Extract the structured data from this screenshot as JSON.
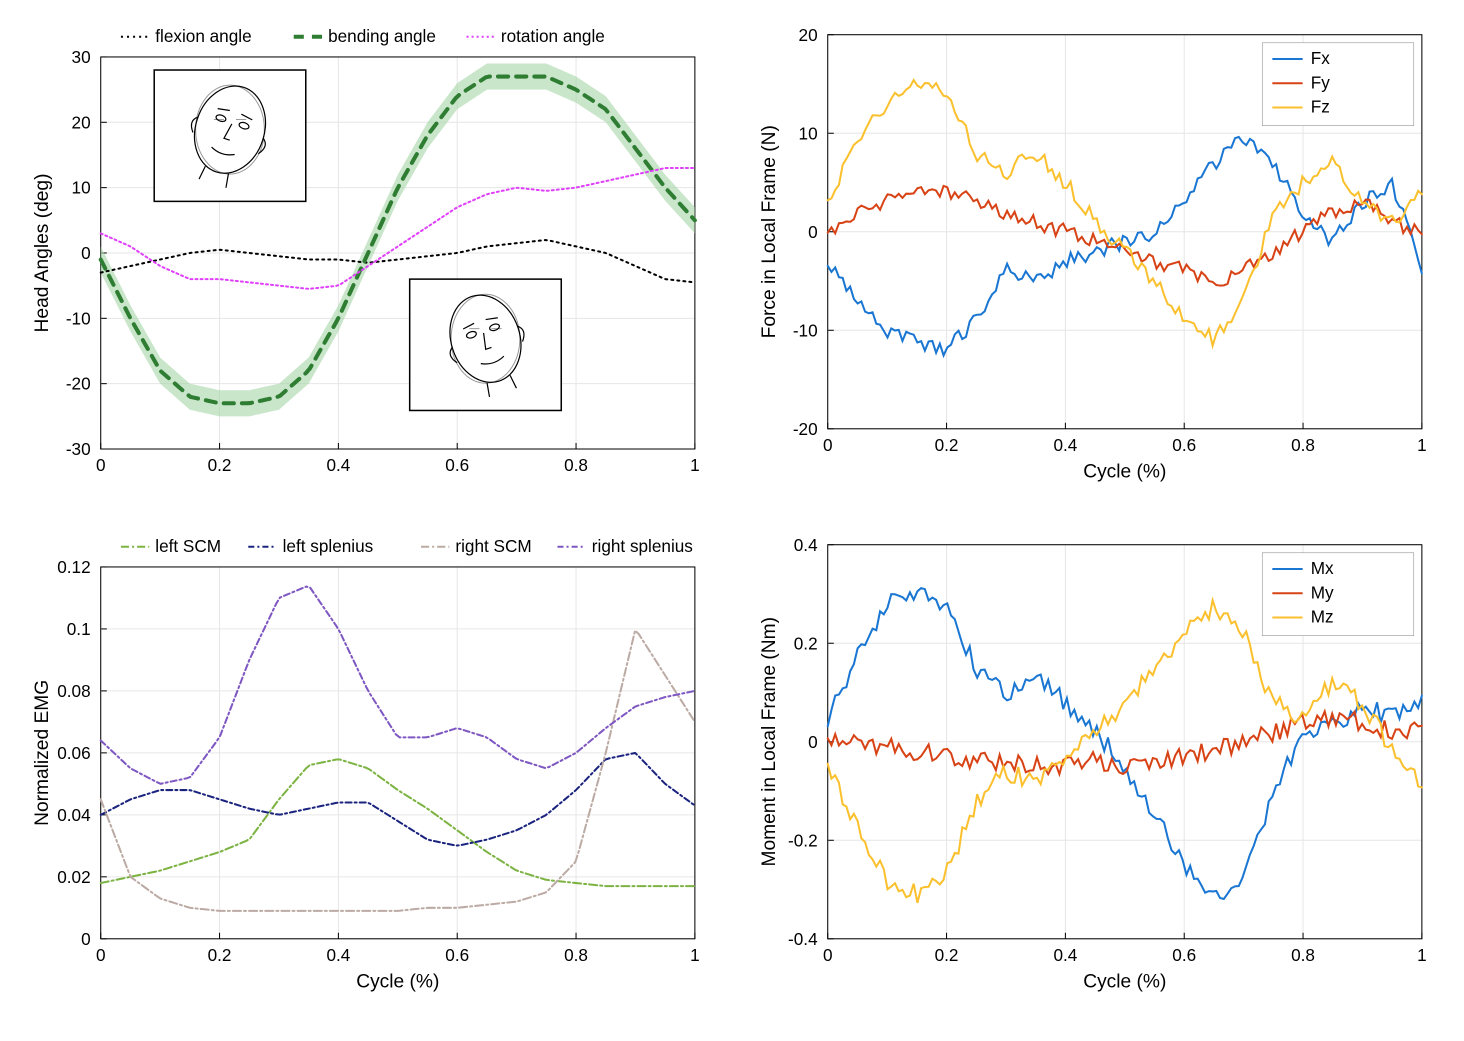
{
  "palette": {
    "black": "#000000",
    "green": "#2e7d32",
    "green_fill": "#a5d6a7",
    "magenta": "#e040fb",
    "blue": "#1976d2",
    "red": "#d84315",
    "orange": "#fbc02d",
    "lime": "#7cb342",
    "navy": "#1a237e",
    "tan": "#bcaaa4",
    "purple": "#7e57c2"
  },
  "panels": {
    "angles": {
      "type": "line",
      "ylabel": "Head Angles (deg)",
      "xlim": [
        0,
        1
      ],
      "ylim": [
        -30,
        30
      ],
      "xtick_step": 0.2,
      "ytick_step": 10,
      "xticks": [
        "0",
        "0.2",
        "0.4",
        "0.6",
        "0.8",
        "1"
      ],
      "yticks": [
        "-30",
        "-20",
        "-10",
        "0",
        "10",
        "20",
        "30"
      ],
      "x": [
        0,
        0.05,
        0.1,
        0.15,
        0.2,
        0.25,
        0.3,
        0.35,
        0.4,
        0.45,
        0.5,
        0.55,
        0.6,
        0.65,
        0.7,
        0.75,
        0.8,
        0.85,
        0.9,
        0.95,
        1
      ],
      "series": [
        {
          "name": "flexion angle",
          "color": "#000000",
          "dash": "2,4",
          "width": 2,
          "y": [
            -3,
            -2,
            -1,
            0,
            0.5,
            0,
            -0.5,
            -1,
            -1,
            -1.5,
            -1,
            -0.5,
            0,
            1,
            1.5,
            2,
            1,
            0,
            -2,
            -4,
            -4.5
          ]
        },
        {
          "name": "bending angle",
          "color": "#2e7d32",
          "dash": "10,8",
          "width": 4,
          "band": true,
          "band_color": "#a5d6a7",
          "y": [
            -1,
            -10,
            -18,
            -22,
            -23,
            -23,
            -22,
            -18,
            -10,
            0,
            10,
            18,
            24,
            27,
            27,
            27,
            25,
            22,
            16,
            10,
            5
          ]
        },
        {
          "name": "rotation angle",
          "color": "#e040fb",
          "dash": "2,3",
          "width": 2,
          "y": [
            3,
            1,
            -2,
            -4,
            -4,
            -4.5,
            -5,
            -5.5,
            -5,
            -2,
            1,
            4,
            7,
            9,
            10,
            9.5,
            10,
            11,
            12,
            13,
            13
          ]
        }
      ],
      "band_delta": 2,
      "legend_pos": "top"
    },
    "force": {
      "type": "line",
      "ylabel": "Force in Local Frame (N)",
      "xlabel": "Cycle (%)",
      "xlim": [
        0,
        1
      ],
      "ylim": [
        -20,
        20
      ],
      "xtick_step": 0.2,
      "ytick_step": 10,
      "xticks": [
        "0",
        "0.2",
        "0.4",
        "0.6",
        "0.8",
        "1"
      ],
      "yticks": [
        "-20",
        "-10",
        "0",
        "10",
        "20"
      ],
      "x": [
        0,
        0.05,
        0.1,
        0.15,
        0.2,
        0.25,
        0.3,
        0.35,
        0.4,
        0.45,
        0.5,
        0.55,
        0.6,
        0.65,
        0.7,
        0.75,
        0.8,
        0.85,
        0.9,
        0.95,
        1
      ],
      "series": [
        {
          "name": "Fx",
          "color": "#1976d2",
          "dash": "",
          "width": 2,
          "y": [
            -3,
            -7,
            -10,
            -11,
            -12,
            -9,
            -4,
            -5,
            -3,
            -2,
            -1,
            0,
            3,
            7,
            9.5,
            7,
            2,
            -1,
            3,
            5,
            -4
          ]
        },
        {
          "name": "Fy",
          "color": "#d84315",
          "dash": "",
          "width": 2,
          "y": [
            0,
            2,
            3,
            4,
            4,
            3,
            2,
            1,
            0,
            -1,
            -2,
            -3,
            -4,
            -5,
            -4,
            -2,
            0,
            2,
            3,
            1,
            0
          ]
        },
        {
          "name": "Fz",
          "color": "#fbc02d",
          "dash": "",
          "width": 2,
          "y": [
            3,
            9,
            13,
            15,
            14,
            8,
            6,
            8,
            5,
            1,
            -2,
            -5,
            -9,
            -11,
            -7,
            2,
            5,
            7,
            3,
            1,
            4
          ]
        }
      ],
      "noise": 0.8,
      "legend_pos": "inside-tr"
    },
    "emg": {
      "type": "line",
      "ylabel": "Normalized EMG",
      "xlabel": "Cycle (%)",
      "xlim": [
        0,
        1
      ],
      "ylim": [
        0,
        0.12
      ],
      "xtick_step": 0.2,
      "ytick_step": 0.02,
      "xticks": [
        "0",
        "0.2",
        "0.4",
        "0.6",
        "0.8",
        "1"
      ],
      "yticks": [
        "0",
        "0.02",
        "0.04",
        "0.06",
        "0.08",
        "0.1",
        "0.12"
      ],
      "x": [
        0,
        0.05,
        0.1,
        0.15,
        0.2,
        0.25,
        0.3,
        0.35,
        0.4,
        0.45,
        0.5,
        0.55,
        0.6,
        0.65,
        0.7,
        0.75,
        0.8,
        0.85,
        0.9,
        0.95,
        1
      ],
      "series": [
        {
          "name": "left SCM",
          "color": "#7cb342",
          "dash": "8,3,2,3",
          "width": 2,
          "y": [
            0.018,
            0.02,
            0.022,
            0.025,
            0.028,
            0.032,
            0.045,
            0.056,
            0.058,
            0.055,
            0.048,
            0.042,
            0.035,
            0.028,
            0.022,
            0.019,
            0.018,
            0.017,
            0.017,
            0.017,
            0.017
          ]
        },
        {
          "name": "left splenius",
          "color": "#1a237e",
          "dash": "6,3,2,3",
          "width": 2,
          "y": [
            0.04,
            0.045,
            0.048,
            0.048,
            0.045,
            0.042,
            0.04,
            0.042,
            0.044,
            0.044,
            0.038,
            0.032,
            0.03,
            0.032,
            0.035,
            0.04,
            0.048,
            0.058,
            0.06,
            0.05,
            0.043
          ]
        },
        {
          "name": "right SCM",
          "color": "#bcaaa4",
          "dash": "8,3,2,3",
          "width": 2,
          "y": [
            0.045,
            0.02,
            0.013,
            0.01,
            0.009,
            0.009,
            0.009,
            0.009,
            0.009,
            0.009,
            0.009,
            0.01,
            0.01,
            0.011,
            0.012,
            0.015,
            0.025,
            0.06,
            0.1,
            0.085,
            0.07
          ]
        },
        {
          "name": "right splenius",
          "color": "#7e57c2",
          "dash": "6,3,2,3",
          "width": 2,
          "y": [
            0.064,
            0.055,
            0.05,
            0.052,
            0.065,
            0.09,
            0.11,
            0.114,
            0.1,
            0.08,
            0.065,
            0.065,
            0.068,
            0.065,
            0.058,
            0.055,
            0.06,
            0.068,
            0.075,
            0.078,
            0.08
          ]
        }
      ],
      "legend_pos": "top"
    },
    "moment": {
      "type": "line",
      "ylabel": "Moment in Local Frame (Nm)",
      "xlabel": "Cycle (%)",
      "xlim": [
        0,
        1
      ],
      "ylim": [
        -0.4,
        0.4
      ],
      "xtick_step": 0.2,
      "ytick_step": 0.2,
      "xticks": [
        "0",
        "0.2",
        "0.4",
        "0.6",
        "0.8",
        "1"
      ],
      "yticks": [
        "-0.4",
        "-0.2",
        "0",
        "0.2",
        "0.4"
      ],
      "x": [
        0,
        0.05,
        0.1,
        0.15,
        0.2,
        0.25,
        0.3,
        0.35,
        0.4,
        0.45,
        0.5,
        0.55,
        0.6,
        0.65,
        0.7,
        0.75,
        0.8,
        0.85,
        0.9,
        0.95,
        1
      ],
      "series": [
        {
          "name": "Mx",
          "color": "#1976d2",
          "dash": "",
          "width": 2,
          "y": [
            0.04,
            0.18,
            0.28,
            0.31,
            0.27,
            0.15,
            0.1,
            0.13,
            0.08,
            0.02,
            -0.05,
            -0.15,
            -0.25,
            -0.32,
            -0.28,
            -0.1,
            0.02,
            0.03,
            0.07,
            0.05,
            0.09
          ]
        },
        {
          "name": "My",
          "color": "#d84315",
          "dash": "",
          "width": 2,
          "y": [
            0.01,
            0.0,
            -0.01,
            -0.02,
            -0.03,
            -0.04,
            -0.04,
            -0.05,
            -0.05,
            -0.04,
            -0.05,
            -0.04,
            -0.03,
            -0.02,
            0.0,
            0.02,
            0.04,
            0.05,
            0.04,
            0.02,
            0.02
          ]
        },
        {
          "name": "Mz",
          "color": "#fbc02d",
          "dash": "",
          "width": 2,
          "y": [
            -0.05,
            -0.18,
            -0.28,
            -0.31,
            -0.27,
            -0.12,
            -0.06,
            -0.08,
            -0.03,
            0.02,
            0.08,
            0.15,
            0.22,
            0.27,
            0.22,
            0.08,
            0.05,
            0.12,
            0.08,
            -0.02,
            -0.08
          ]
        }
      ],
      "noise": 0.02,
      "legend_pos": "inside-tr"
    }
  }
}
